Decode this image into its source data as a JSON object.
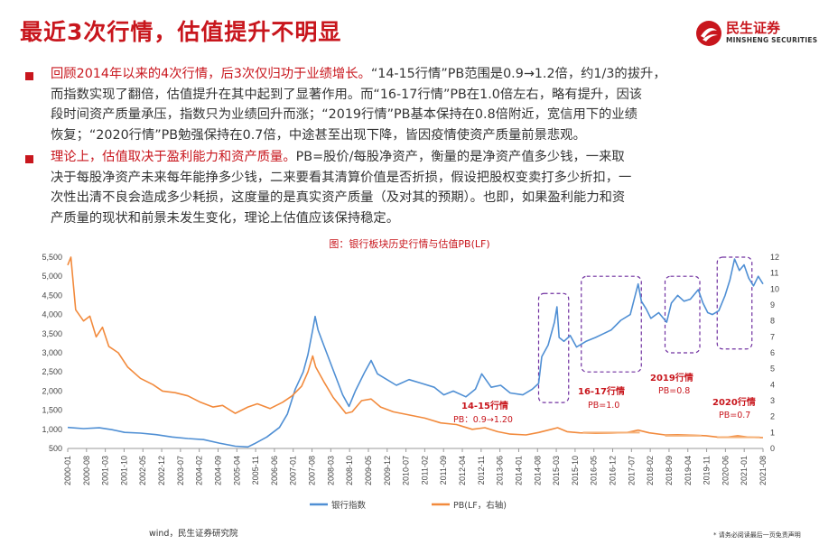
{
  "header": {
    "title": "最近3次行情，估值提升不明显",
    "logo_cn": "民生证券",
    "logo_en": "MINSHENG SECURITIES"
  },
  "bullets": [
    {
      "lead": "回顾2014年以来的4次行情，后3次仅归功于业绩增长。",
      "lines": [
        "“14-15行情”PB范围是0.9→1.2倍，约1/3的拔升，",
        "而指数实现了翻倍，估值提升在其中起到了显著作用。而“16-17行情”PB在1.0倍左右，略有提升，因该",
        "段时间资产质量承压，指数只为业绩回升而涨；“2019行情”PB基本保持在0.8倍附近，宽信用下的业绩",
        "恢复；“2020行情”PB勉强保持在0.7倍，中途甚至出现下降，皆因疫情使资产质量前景悲观。"
      ]
    },
    {
      "lead": "理论上，估值取决于盈利能力和资产质量。",
      "lines": [
        "PB=股价/每股净资产，衡量的是净资产值多少钱，一来取",
        "决于每股净资产未来每年能挣多少钱，二来要看其清算价值是否折损，假设把股权变卖打多少折扣，一",
        "次性出清不良会造成多少耗损，这度量的是真实资产质量（及对其的预期）。也即，如果盈利能力和资",
        "产质量的现状和前景未发生变化，理论上估值应该保持稳定。"
      ]
    }
  ],
  "chart_caption": "图：银行板块历史行情与估值PB(LF)",
  "annotations": [
    {
      "title": "14-15行情",
      "detail": "PB：0.9→1.20"
    },
    {
      "title": "16-17行情",
      "detail": "PB=1.0"
    },
    {
      "title": "2019行情",
      "detail": "PB=0.8"
    },
    {
      "title": "2020行情",
      "detail": "PB=0.7"
    }
  ],
  "source": "wind，民生证券研究院",
  "footnote": "* 请务必阅读最后一页免责声明",
  "colors": {
    "brand": "#c8161d",
    "index_line": "#4f8fd4",
    "pb_line": "#f28a3c",
    "box": "#7030a0"
  },
  "chart_data": {
    "type": "line",
    "xlabel": "",
    "ylabel_left": "",
    "ylabel_right": "",
    "y_left_ticks": [
      "500",
      "1,000",
      "1,500",
      "2,000",
      "2,500",
      "3,000",
      "3,500",
      "4,000",
      "4,500",
      "5,000",
      "5,500"
    ],
    "y_left_range": [
      500,
      5500
    ],
    "y_right_ticks": [
      "0",
      "1",
      "2",
      "3",
      "4",
      "5",
      "6",
      "7",
      "8",
      "9",
      "10",
      "11",
      "12"
    ],
    "y_right_range": [
      0,
      12
    ],
    "x_ticks": [
      "2000-01",
      "2000-08",
      "2001-03",
      "2001-10",
      "2002-05",
      "2002-12",
      "2003-07",
      "2004-02",
      "2004-09",
      "2005-04",
      "2005-11",
      "2006-06",
      "2007-01",
      "2007-08",
      "2008-03",
      "2008-10",
      "2009-05",
      "2009-12",
      "2010-07",
      "2011-02",
      "2011-09",
      "2012-04",
      "2012-11",
      "2013-06",
      "2014-01",
      "2014-08",
      "2015-03",
      "2015-10",
      "2016-05",
      "2016-12",
      "2017-07",
      "2018-02",
      "2018-09",
      "2019-04",
      "2019-11",
      "2020-06",
      "2021-01",
      "2021-08"
    ],
    "x_range": [
      2000.0,
      2022.0
    ],
    "series": [
      {
        "name": "银行指数",
        "axis": "left",
        "points": [
          [
            2000.0,
            1050
          ],
          [
            2000.5,
            1020
          ],
          [
            2001.0,
            1040
          ],
          [
            2001.4,
            990
          ],
          [
            2001.8,
            920
          ],
          [
            2002.3,
            900
          ],
          [
            2002.8,
            860
          ],
          [
            2003.3,
            800
          ],
          [
            2003.8,
            760
          ],
          [
            2004.3,
            730
          ],
          [
            2004.8,
            640
          ],
          [
            2005.3,
            560
          ],
          [
            2005.7,
            540
          ],
          [
            2005.9,
            620
          ],
          [
            2006.3,
            800
          ],
          [
            2006.7,
            1050
          ],
          [
            2006.95,
            1400
          ],
          [
            2007.2,
            2050
          ],
          [
            2007.45,
            2500
          ],
          [
            2007.6,
            2950
          ],
          [
            2007.75,
            3600
          ],
          [
            2007.83,
            3950
          ],
          [
            2007.92,
            3600
          ],
          [
            2008.1,
            3200
          ],
          [
            2008.4,
            2550
          ],
          [
            2008.7,
            1900
          ],
          [
            2008.9,
            1600
          ],
          [
            2009.1,
            2000
          ],
          [
            2009.4,
            2500
          ],
          [
            2009.6,
            2800
          ],
          [
            2009.8,
            2450
          ],
          [
            2010.0,
            2350
          ],
          [
            2010.4,
            2150
          ],
          [
            2010.8,
            2300
          ],
          [
            2011.2,
            2200
          ],
          [
            2011.6,
            2100
          ],
          [
            2011.9,
            1900
          ],
          [
            2012.2,
            2000
          ],
          [
            2012.6,
            1850
          ],
          [
            2012.9,
            2050
          ],
          [
            2013.1,
            2450
          ],
          [
            2013.4,
            2100
          ],
          [
            2013.7,
            2150
          ],
          [
            2014.0,
            1950
          ],
          [
            2014.4,
            1900
          ],
          [
            2014.7,
            2050
          ],
          [
            2014.9,
            2200
          ],
          [
            2015.0,
            2900
          ],
          [
            2015.2,
            3200
          ],
          [
            2015.4,
            3800
          ],
          [
            2015.48,
            4200
          ],
          [
            2015.55,
            3400
          ],
          [
            2015.7,
            3300
          ],
          [
            2015.9,
            3450
          ],
          [
            2016.1,
            3150
          ],
          [
            2016.4,
            3300
          ],
          [
            2016.7,
            3400
          ],
          [
            2016.95,
            3500
          ],
          [
            2017.2,
            3600
          ],
          [
            2017.5,
            3850
          ],
          [
            2017.8,
            4000
          ],
          [
            2018.05,
            4800
          ],
          [
            2018.15,
            4350
          ],
          [
            2018.3,
            4150
          ],
          [
            2018.45,
            3900
          ],
          [
            2018.7,
            4050
          ],
          [
            2018.95,
            3800
          ],
          [
            2019.1,
            4300
          ],
          [
            2019.3,
            4500
          ],
          [
            2019.5,
            4350
          ],
          [
            2019.7,
            4400
          ],
          [
            2019.95,
            4650
          ],
          [
            2020.1,
            4300
          ],
          [
            2020.25,
            4050
          ],
          [
            2020.4,
            4000
          ],
          [
            2020.6,
            4100
          ],
          [
            2020.8,
            4500
          ],
          [
            2020.95,
            4900
          ],
          [
            2021.1,
            5450
          ],
          [
            2021.25,
            5150
          ],
          [
            2021.4,
            5300
          ],
          [
            2021.55,
            4950
          ],
          [
            2021.7,
            4750
          ],
          [
            2021.85,
            5000
          ],
          [
            2022.0,
            4800
          ]
        ]
      },
      {
        "name": "PB(LF，右轴)",
        "axis": "right",
        "points": [
          [
            2000.0,
            11.5
          ],
          [
            2000.1,
            12.0
          ],
          [
            2000.25,
            8.7
          ],
          [
            2000.5,
            8.0
          ],
          [
            2000.7,
            8.3
          ],
          [
            2000.9,
            7.0
          ],
          [
            2001.1,
            7.6
          ],
          [
            2001.3,
            6.4
          ],
          [
            2001.6,
            6.0
          ],
          [
            2001.9,
            5.1
          ],
          [
            2002.3,
            4.4
          ],
          [
            2002.7,
            4.0
          ],
          [
            2003.0,
            3.6
          ],
          [
            2003.4,
            3.5
          ],
          [
            2003.8,
            3.3
          ],
          [
            2004.2,
            2.9
          ],
          [
            2004.6,
            2.6
          ],
          [
            2004.9,
            2.7
          ],
          [
            2005.3,
            2.2
          ],
          [
            2005.7,
            2.6
          ],
          [
            2006.0,
            2.8
          ],
          [
            2006.4,
            2.5
          ],
          [
            2006.8,
            2.9
          ],
          [
            2007.1,
            3.3
          ],
          [
            2007.4,
            3.9
          ],
          [
            2007.6,
            4.8
          ],
          [
            2007.75,
            5.8
          ],
          [
            2007.85,
            5.1
          ],
          [
            2008.1,
            4.2
          ],
          [
            2008.4,
            3.2
          ],
          [
            2008.8,
            2.2
          ],
          [
            2009.0,
            2.3
          ],
          [
            2009.3,
            3.0
          ],
          [
            2009.6,
            3.1
          ],
          [
            2009.9,
            2.6
          ],
          [
            2010.3,
            2.3
          ],
          [
            2010.8,
            2.1
          ],
          [
            2011.3,
            1.9
          ],
          [
            2011.8,
            1.6
          ],
          [
            2012.3,
            1.5
          ],
          [
            2012.8,
            1.2
          ],
          [
            2013.2,
            1.3
          ],
          [
            2013.6,
            1.05
          ],
          [
            2014.0,
            0.9
          ],
          [
            2014.5,
            0.85
          ],
          [
            2014.9,
            1.0
          ],
          [
            2015.3,
            1.2
          ],
          [
            2015.5,
            1.3
          ],
          [
            2015.8,
            1.05
          ],
          [
            2016.2,
            0.98
          ],
          [
            2016.7,
            0.95
          ],
          [
            2017.2,
            0.97
          ],
          [
            2017.7,
            1.0
          ],
          [
            2018.05,
            1.15
          ],
          [
            2018.4,
            0.98
          ],
          [
            2018.9,
            0.85
          ],
          [
            2019.3,
            0.86
          ],
          [
            2019.8,
            0.83
          ],
          [
            2020.2,
            0.8
          ],
          [
            2020.6,
            0.7
          ],
          [
            2020.9,
            0.72
          ],
          [
            2021.2,
            0.8
          ],
          [
            2021.5,
            0.72
          ],
          [
            2021.8,
            0.69
          ],
          [
            2022.0,
            0.68
          ]
        ]
      }
    ],
    "highlight_periods": [
      {
        "label": "14-15行情",
        "x": [
          2014.9,
          2015.85
        ],
        "y_left": [
          1700,
          4550
        ]
      },
      {
        "label": "16-17行情",
        "x": [
          2016.25,
          2018.15
        ],
        "y_left": [
          2500,
          5000
        ]
      },
      {
        "label": "2019行情",
        "x": [
          2018.9,
          2020.0
        ],
        "y_left": [
          3000,
          5000
        ]
      },
      {
        "label": "2020行情",
        "x": [
          2020.55,
          2021.65
        ],
        "y_left": [
          3100,
          5500
        ]
      }
    ],
    "reference_lines": [
      {
        "label": "16-17行情",
        "x": [
          2016.3,
          2018.1
        ],
        "y_right": 1.0
      },
      {
        "label": "2019行情",
        "x": [
          2018.9,
          2020.05
        ],
        "y_right": 0.8
      },
      {
        "label": "2020行情",
        "x": [
          2020.55,
          2021.9
        ],
        "y_right": 0.7
      }
    ],
    "legend": [
      "银行指数",
      "PB(LF，右轴)"
    ],
    "legend_position": "bottom",
    "grid": false
  }
}
